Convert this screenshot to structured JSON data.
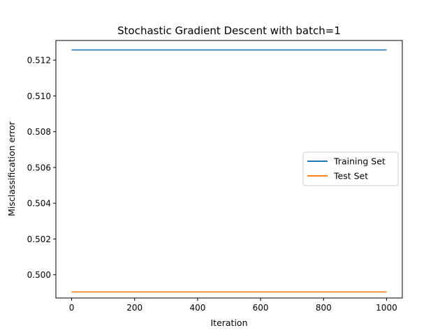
{
  "chart_data": {
    "type": "line",
    "title": "Stochastic Gradient Descent with batch=1",
    "xlabel": "Iteration",
    "ylabel": "Misclassification error",
    "xlim": [
      -50,
      1050
    ],
    "ylim": [
      0.4987,
      0.5131
    ],
    "xticks": [
      0,
      200,
      400,
      600,
      800,
      1000
    ],
    "xtick_labels": [
      "0",
      "200",
      "400",
      "600",
      "800",
      "1000"
    ],
    "yticks": [
      0.5,
      0.502,
      0.504,
      0.506,
      0.508,
      0.51,
      0.512
    ],
    "ytick_labels": [
      "0.500",
      "0.502",
      "0.504",
      "0.506",
      "0.508",
      "0.510",
      "0.512"
    ],
    "grid": false,
    "legend_position": "center-right",
    "series": [
      {
        "name": "Training Set",
        "color": "#1f77b4",
        "x": [
          0,
          1000
        ],
        "y": [
          0.51257,
          0.51257
        ]
      },
      {
        "name": "Test Set",
        "color": "#ff7f0e",
        "x": [
          0,
          1000
        ],
        "y": [
          0.49904,
          0.49904
        ]
      }
    ]
  }
}
